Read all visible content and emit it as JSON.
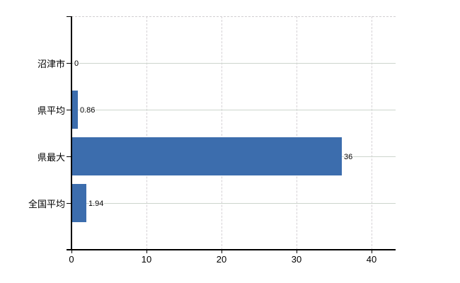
{
  "chart_data": {
    "type": "bar",
    "orientation": "horizontal",
    "title": "",
    "xlabel": "",
    "ylabel": "",
    "categories": [
      "沼津市",
      "県平均",
      "県最大",
      "全国平均"
    ],
    "values": [
      0,
      0.86,
      36,
      1.94
    ],
    "value_labels": [
      "0",
      "0.86",
      "36",
      "1.94"
    ],
    "x_ticks": [
      {
        "value": 0,
        "label": "0"
      },
      {
        "value": 10,
        "label": "10"
      },
      {
        "value": 20,
        "label": "20"
      },
      {
        "value": 30,
        "label": "30"
      },
      {
        "value": 40,
        "label": "40"
      }
    ],
    "xlim": [
      0,
      43.2
    ],
    "grid": true,
    "legend_position": "none"
  },
  "colors": {
    "bar": "#3c6dad",
    "horizontal_gridline": "#cdd5cd",
    "vertical_gridline": "#d5d1d5",
    "plot_top_border": "#d2cfd2",
    "axis": "#000000",
    "text": "#000000",
    "background": "#ffffff"
  }
}
